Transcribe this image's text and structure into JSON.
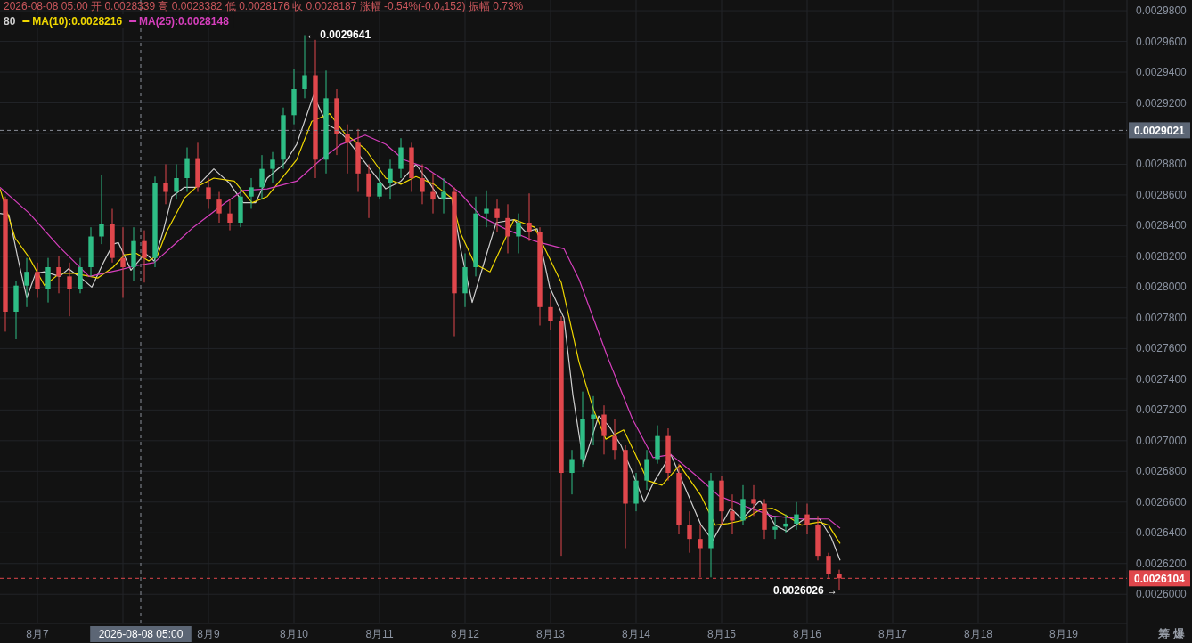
{
  "chart_data": {
    "type": "candlestick",
    "annotations": [
      "2026-08-08 05:00 开 0.0028339 高 0.0028382 低 0.0028176 收 0.0028187 涨幅 -0.54%(-0.0₄152) 振幅 0.73%",
      "80",
      {
        "text": "← 0.0029641",
        "x": "2026-08-10T03:00",
        "y": 0.0029641
      },
      {
        "text": "0.0026026 →",
        "x": "2026-08-16T09:00",
        "y": 0.0026026
      },
      "筹 爆"
    ],
    "x": [
      "2026-08-06T15:00",
      "2026-08-06T18:00",
      "2026-08-06T21:00",
      "2026-08-07T00:00",
      "2026-08-07T03:00",
      "2026-08-07T06:00",
      "2026-08-07T09:00",
      "2026-08-07T12:00",
      "2026-08-07T15:00",
      "2026-08-07T18:00",
      "2026-08-07T21:00",
      "2026-08-08T00:00",
      "2026-08-08T03:00",
      "2026-08-08T06:00",
      "2026-08-08T09:00",
      "2026-08-08T12:00",
      "2026-08-08T15:00",
      "2026-08-08T18:00",
      "2026-08-08T21:00",
      "2026-08-09T00:00",
      "2026-08-09T03:00",
      "2026-08-09T06:00",
      "2026-08-09T09:00",
      "2026-08-09T12:00",
      "2026-08-09T15:00",
      "2026-08-09T18:00",
      "2026-08-09T21:00",
      "2026-08-10T00:00",
      "2026-08-10T03:00",
      "2026-08-10T06:00",
      "2026-08-10T09:00",
      "2026-08-10T12:00",
      "2026-08-10T15:00",
      "2026-08-10T18:00",
      "2026-08-10T21:00",
      "2026-08-11T00:00",
      "2026-08-11T03:00",
      "2026-08-11T06:00",
      "2026-08-11T09:00",
      "2026-08-11T12:00",
      "2026-08-11T15:00",
      "2026-08-11T18:00",
      "2026-08-11T21:00",
      "2026-08-12T00:00",
      "2026-08-12T03:00",
      "2026-08-12T06:00",
      "2026-08-12T09:00",
      "2026-08-12T12:00",
      "2026-08-12T15:00",
      "2026-08-12T18:00",
      "2026-08-12T21:00",
      "2026-08-13T00:00",
      "2026-08-13T03:00",
      "2026-08-13T06:00",
      "2026-08-13T09:00",
      "2026-08-13T12:00",
      "2026-08-13T15:00",
      "2026-08-13T18:00",
      "2026-08-13T21:00",
      "2026-08-14T00:00",
      "2026-08-14T03:00",
      "2026-08-14T06:00",
      "2026-08-14T09:00",
      "2026-08-14T12:00",
      "2026-08-14T15:00",
      "2026-08-14T18:00",
      "2026-08-14T21:00",
      "2026-08-15T00:00",
      "2026-08-15T03:00",
      "2026-08-15T06:00",
      "2026-08-15T09:00",
      "2026-08-15T12:00",
      "2026-08-15T15:00",
      "2026-08-15T18:00",
      "2026-08-15T21:00",
      "2026-08-16T00:00",
      "2026-08-16T03:00",
      "2026-08-16T06:00",
      "2026-08-16T09:00"
    ],
    "ohlc": [
      [
        0.002857,
        0.002859,
        0.002771,
        0.002784
      ],
      [
        0.002784,
        0.002804,
        0.002766,
        0.002801
      ],
      [
        0.002801,
        0.002819,
        0.002787,
        0.00281
      ],
      [
        0.00281,
        0.002816,
        0.002793,
        0.002799
      ],
      [
        0.002799,
        0.002819,
        0.00279,
        0.002813
      ],
      [
        0.002813,
        0.00282,
        0.002796,
        0.002807
      ],
      [
        0.002807,
        0.002816,
        0.002781,
        0.002799
      ],
      [
        0.002799,
        0.002819,
        0.002796,
        0.002813
      ],
      [
        0.002813,
        0.002839,
        0.002807,
        0.002833
      ],
      [
        0.002833,
        0.002873,
        0.002828,
        0.002841
      ],
      [
        0.002841,
        0.002851,
        0.002816,
        0.002819
      ],
      [
        0.002819,
        0.002839,
        0.002793,
        0.002813
      ],
      [
        0.002813,
        0.002839,
        0.002804,
        0.00283
      ],
      [
        0.00283,
        0.002837,
        0.002803,
        0.002819
      ],
      [
        0.002819,
        0.002872,
        0.002813,
        0.002868
      ],
      [
        0.002868,
        0.00288,
        0.002854,
        0.002862
      ],
      [
        0.002862,
        0.00288,
        0.002857,
        0.002871
      ],
      [
        0.002871,
        0.002891,
        0.002862,
        0.002884
      ],
      [
        0.002884,
        0.002894,
        0.002862,
        0.002865
      ],
      [
        0.002865,
        0.002871,
        0.002851,
        0.002857
      ],
      [
        0.002857,
        0.002862,
        0.002842,
        0.002848
      ],
      [
        0.002848,
        0.002857,
        0.002837,
        0.002842
      ],
      [
        0.002842,
        0.002865,
        0.002839,
        0.002859
      ],
      [
        0.002859,
        0.002871,
        0.002851,
        0.002865
      ],
      [
        0.002865,
        0.002886,
        0.002857,
        0.002877
      ],
      [
        0.002877,
        0.002888,
        0.002868,
        0.002883
      ],
      [
        0.002883,
        0.002917,
        0.002877,
        0.002912
      ],
      [
        0.002912,
        0.002942,
        0.002906,
        0.002929
      ],
      [
        0.002929,
        0.0029641,
        0.002923,
        0.002938
      ],
      [
        0.002938,
        0.002961,
        0.002871,
        0.002883
      ],
      [
        0.002883,
        0.002941,
        0.002874,
        0.002923
      ],
      [
        0.002923,
        0.002929,
        0.002886,
        0.0029
      ],
      [
        0.0029,
        0.002906,
        0.002874,
        0.002894
      ],
      [
        0.002894,
        0.002903,
        0.002862,
        0.002874
      ],
      [
        0.002874,
        0.00288,
        0.002845,
        0.002859
      ],
      [
        0.002859,
        0.002877,
        0.002857,
        0.002868
      ],
      [
        0.002868,
        0.002883,
        0.002857,
        0.002877
      ],
      [
        0.002877,
        0.002897,
        0.002871,
        0.002891
      ],
      [
        0.002891,
        0.002894,
        0.002862,
        0.002871
      ],
      [
        0.002871,
        0.00288,
        0.002854,
        0.002862
      ],
      [
        0.002862,
        0.002874,
        0.002848,
        0.002857
      ],
      [
        0.002857,
        0.002871,
        0.002848,
        0.002862
      ],
      [
        0.002862,
        0.002865,
        0.002768,
        0.002796
      ],
      [
        0.002796,
        0.002822,
        0.002787,
        0.002813
      ],
      [
        0.002813,
        0.002859,
        0.002807,
        0.002848
      ],
      [
        0.002848,
        0.002863,
        0.002839,
        0.002851
      ],
      [
        0.002851,
        0.002857,
        0.002836,
        0.002845
      ],
      [
        0.002845,
        0.002854,
        0.002822,
        0.002833
      ],
      [
        0.002833,
        0.002848,
        0.002822,
        0.002842
      ],
      [
        0.002842,
        0.002861,
        0.00283,
        0.002836
      ],
      [
        0.002836,
        0.002839,
        0.002775,
        0.002787
      ],
      [
        0.002787,
        0.002796,
        0.002772,
        0.002778
      ],
      [
        0.002778,
        0.002781,
        0.002625,
        0.002679
      ],
      [
        0.002679,
        0.002694,
        0.002665,
        0.002688
      ],
      [
        0.002688,
        0.002732,
        0.002683,
        0.002714
      ],
      [
        0.002714,
        0.002729,
        0.002697,
        0.002717
      ],
      [
        0.002717,
        0.002723,
        0.002691,
        0.002703
      ],
      [
        0.002703,
        0.002714,
        0.002688,
        0.002694
      ],
      [
        0.002694,
        0.002697,
        0.00263,
        0.002659
      ],
      [
        0.002659,
        0.002679,
        0.002654,
        0.002674
      ],
      [
        0.002674,
        0.002694,
        0.002668,
        0.002688
      ],
      [
        0.002688,
        0.00271,
        0.002685,
        0.002703
      ],
      [
        0.002703,
        0.002708,
        0.002674,
        0.002679
      ],
      [
        0.002679,
        0.002685,
        0.002639,
        0.002645
      ],
      [
        0.002645,
        0.002654,
        0.002627,
        0.002636
      ],
      [
        0.002636,
        0.002645,
        0.002611,
        0.00263
      ],
      [
        0.00263,
        0.002679,
        0.002611,
        0.002674
      ],
      [
        0.002674,
        0.002677,
        0.002645,
        0.002654
      ],
      [
        0.002654,
        0.002665,
        0.002639,
        0.002648
      ],
      [
        0.002648,
        0.002671,
        0.002645,
        0.002662
      ],
      [
        0.002662,
        0.002671,
        0.002651,
        0.002659
      ],
      [
        0.002659,
        0.002662,
        0.002636,
        0.002642
      ],
      [
        0.002642,
        0.002651,
        0.002636,
        0.002644
      ],
      [
        0.002644,
        0.002652,
        0.00264,
        0.002646
      ],
      [
        0.002646,
        0.00266,
        0.002642,
        0.002652
      ],
      [
        0.002652,
        0.002659,
        0.002639,
        0.002645
      ],
      [
        0.002645,
        0.002651,
        0.002622,
        0.002625
      ],
      [
        0.002625,
        0.002627,
        0.00261,
        0.002613
      ],
      [
        0.002613,
        0.002616,
        0.0026026,
        0.0026104
      ]
    ],
    "colors": [
      "#e0474c",
      "#2ebd85",
      "#2ebd85",
      "#e0474c",
      "#2ebd85",
      "#e0474c",
      "#e0474c",
      "#2ebd85",
      "#2ebd85",
      "#2ebd85",
      "#e0474c",
      "#e0474c",
      "#2ebd85",
      "#e0474c",
      "#2ebd85",
      "#e0474c",
      "#2ebd85",
      "#2ebd85",
      "#e0474c",
      "#e0474c",
      "#e0474c",
      "#e0474c",
      "#2ebd85",
      "#2ebd85",
      "#2ebd85",
      "#2ebd85",
      "#2ebd85",
      "#2ebd85",
      "#2ebd85",
      "#e0474c",
      "#2ebd85",
      "#e0474c",
      "#e0474c",
      "#e0474c",
      "#e0474c",
      "#2ebd85",
      "#2ebd85",
      "#2ebd85",
      "#e0474c",
      "#e0474c",
      "#e0474c",
      "#2ebd85",
      "#e0474c",
      "#2ebd85",
      "#2ebd85",
      "#2ebd85",
      "#e0474c",
      "#e0474c",
      "#2ebd85",
      "#e0474c",
      "#e0474c",
      "#e0474c",
      "#e0474c",
      "#2ebd85",
      "#2ebd85",
      "#2ebd85",
      "#e0474c",
      "#e0474c",
      "#e0474c",
      "#2ebd85",
      "#2ebd85",
      "#2ebd85",
      "#e0474c",
      "#e0474c",
      "#e0474c",
      "#e0474c",
      "#2ebd85",
      "#e0474c",
      "#e0474c",
      "#2ebd85",
      "#e0474c",
      "#e0474c",
      "#2ebd85",
      "#2ebd85",
      "#2ebd85",
      "#e0474c",
      "#e0474c",
      "#e0474c",
      "#e0474c"
    ],
    "series": [
      {
        "type": "line",
        "color": "#cfcfcf",
        "x": [
          "2026-08-06T13:30",
          "2026-08-06T16:00",
          "2026-08-06T18:30",
          "2026-08-06T21:00",
          "2026-08-06T23:30",
          "2026-08-07T02:00",
          "2026-08-07T06:15",
          "2026-08-07T08:45",
          "2026-08-07T12:45",
          "2026-08-07T15:15",
          "2026-08-07T18:45",
          "2026-08-07T21:15",
          "2026-08-07T22:45",
          "2026-08-08T02:15",
          "2026-08-08T06:15",
          "2026-08-08T08:45",
          "2026-08-08T11:15",
          "2026-08-08T13:45",
          "2026-08-08T17:15",
          "2026-08-08T20:30",
          "2026-08-09T01:30",
          "2026-08-09T05:45",
          "2026-08-09T09:45",
          "2026-08-09T13:15",
          "2026-08-09T16:30",
          "2026-08-09T21:30",
          "2026-08-10T00:45",
          "2026-08-10T05:30",
          "2026-08-10T09:15",
          "2026-08-10T12:30",
          "2026-08-10T15:00",
          "2026-08-10T20:00",
          "2026-08-11T01:45",
          "2026-08-11T06:00",
          "2026-08-11T10:15",
          "2026-08-11T14:15",
          "2026-08-11T16:45",
          "2026-08-11T20:15",
          "2026-08-11T22:45",
          "2026-08-12T02:00",
          "2026-08-12T06:15",
          "2026-08-12T08:45",
          "2026-08-12T13:45",
          "2026-08-12T17:00",
          "2026-08-12T20:15",
          "2026-08-12T23:45",
          "2026-08-13T03:45",
          "2026-08-13T06:15",
          "2026-08-13T09:15",
          "2026-08-13T13:30",
          "2026-08-13T16:15",
          "2026-08-13T19:45",
          "2026-08-13T23:00",
          "2026-08-14T02:15",
          "2026-08-14T04:45",
          "2026-08-14T09:45",
          "2026-08-14T14:00",
          "2026-08-14T18:15",
          "2026-08-14T21:30",
          "2026-08-15T02:30",
          "2026-08-15T05:45",
          "2026-08-15T10:45",
          "2026-08-15T15:00",
          "2026-08-15T18:15",
          "2026-08-15T23:15",
          "2026-08-16T03:30",
          "2026-08-16T06:45",
          "2026-08-16T09:15"
        ],
        "values": [
          0.002848,
          0.002847,
          0.002819,
          0.002793,
          0.002809,
          0.00281,
          0.002807,
          0.002812,
          0.002805,
          0.0028,
          0.002817,
          0.002828,
          0.002829,
          0.002811,
          0.002822,
          0.002817,
          0.002836,
          0.002859,
          0.002865,
          0.002865,
          0.002877,
          0.002868,
          0.002855,
          0.002855,
          0.002871,
          0.002881,
          0.002893,
          0.002925,
          0.002906,
          0.002902,
          0.002896,
          0.002881,
          0.002864,
          0.002869,
          0.00288,
          0.002867,
          0.002858,
          0.002858,
          0.002825,
          0.00279,
          0.002823,
          0.002842,
          0.002844,
          0.002836,
          0.002838,
          0.0028,
          0.00278,
          0.00273,
          0.002685,
          0.002716,
          0.00271,
          0.002697,
          0.002679,
          0.00266,
          0.002672,
          0.002691,
          0.002668,
          0.002645,
          0.002635,
          0.002656,
          0.002649,
          0.002661,
          0.002645,
          0.002641,
          0.002649,
          0.002649,
          0.002637,
          0.002622
        ]
      },
      {
        "name": "MA(10):0.0028216",
        "type": "line",
        "color": "#f0d800",
        "x": [
          "2026-08-06T13:30",
          "2026-08-06T17:45",
          "2026-08-06T21:45",
          "2026-08-07T02:00",
          "2026-08-07T06:15",
          "2026-08-07T10:15",
          "2026-08-07T17:00",
          "2026-08-07T21:15",
          "2026-08-08T00:30",
          "2026-08-08T03:45",
          "2026-08-08T07:15",
          "2026-08-08T09:45",
          "2026-08-08T12:15",
          "2026-08-08T17:15",
          "2026-08-08T20:30",
          "2026-08-09T01:30",
          "2026-08-09T07:15",
          "2026-08-09T12:15",
          "2026-08-09T16:30",
          "2026-08-10T00:45",
          "2026-08-10T05:00",
          "2026-08-10T10:00",
          "2026-08-10T14:15",
          "2026-08-10T20:00",
          "2026-08-11T01:45",
          "2026-08-11T06:00",
          "2026-08-11T10:15",
          "2026-08-11T15:15",
          "2026-08-11T20:15",
          "2026-08-11T22:45",
          "2026-08-12T02:45",
          "2026-08-12T07:00",
          "2026-08-12T13:45",
          "2026-08-12T19:30",
          "2026-08-13T03:00",
          "2026-08-13T08:00",
          "2026-08-13T12:15",
          "2026-08-13T15:30",
          "2026-08-13T20:30",
          "2026-08-13T23:00",
          "2026-08-14T03:15",
          "2026-08-14T07:15",
          "2026-08-14T12:15",
          "2026-08-14T18:15",
          "2026-08-14T22:15",
          "2026-08-15T01:45",
          "2026-08-15T05:45",
          "2026-08-15T10:45",
          "2026-08-15T14:15",
          "2026-08-15T18:15",
          "2026-08-15T22:30",
          "2026-08-16T03:30",
          "2026-08-16T06:00",
          "2026-08-16T09:15"
        ],
        "values": [
          0.002864,
          0.002832,
          0.002819,
          0.002801,
          0.002809,
          0.002809,
          0.002806,
          0.002813,
          0.002821,
          0.002822,
          0.002817,
          0.002821,
          0.002836,
          0.002858,
          0.002865,
          0.002871,
          0.002869,
          0.002855,
          0.002859,
          0.002883,
          0.002908,
          0.002913,
          0.0029,
          0.00289,
          0.002871,
          0.002867,
          0.002872,
          0.002867,
          0.002858,
          0.002835,
          0.002815,
          0.00281,
          0.002844,
          0.002839,
          0.002803,
          0.002751,
          0.002719,
          0.002701,
          0.002707,
          0.002695,
          0.002674,
          0.002671,
          0.002684,
          0.002664,
          0.002645,
          0.002646,
          0.002648,
          0.002655,
          0.002656,
          0.002651,
          0.002645,
          0.002647,
          0.002645,
          0.002633
        ]
      },
      {
        "name": "MA(25):0.0028148",
        "type": "line",
        "color": "#d63fbd",
        "x": [
          "2026-08-06T13:30",
          "2026-08-06T21:45",
          "2026-08-07T06:15",
          "2026-08-07T14:30",
          "2026-08-07T22:45",
          "2026-08-08T03:45",
          "2026-08-08T08:45",
          "2026-08-08T15:30",
          "2026-08-08T19:45",
          "2026-08-08T23:45",
          "2026-08-09T04:45",
          "2026-08-09T09:45",
          "2026-08-09T16:30",
          "2026-08-10T00:45",
          "2026-08-10T07:30",
          "2026-08-10T13:15",
          "2026-08-10T20:00",
          "2026-08-11T01:45",
          "2026-08-11T06:45",
          "2026-08-11T12:45",
          "2026-08-11T18:30",
          "2026-08-11T22:45",
          "2026-08-12T04:30",
          "2026-08-12T11:15",
          "2026-08-12T19:30",
          "2026-08-13T03:45",
          "2026-08-13T08:00",
          "2026-08-13T16:15",
          "2026-08-13T23:00",
          "2026-08-14T04:45",
          "2026-08-14T09:45",
          "2026-08-14T16:30",
          "2026-08-14T23:15",
          "2026-08-15T05:45",
          "2026-08-15T14:15",
          "2026-08-15T22:30",
          "2026-08-16T06:00",
          "2026-08-16T09:15"
        ],
        "values": [
          0.002865,
          0.002848,
          0.002826,
          0.002807,
          0.002811,
          0.002814,
          0.002816,
          0.00283,
          0.002839,
          0.002846,
          0.002855,
          0.002863,
          0.002864,
          0.002869,
          0.002883,
          0.002893,
          0.002899,
          0.002893,
          0.002883,
          0.002878,
          0.002869,
          0.002861,
          0.002846,
          0.002838,
          0.00283,
          0.002825,
          0.002805,
          0.002753,
          0.002714,
          0.002689,
          0.002691,
          0.002678,
          0.002664,
          0.002658,
          0.002651,
          0.002649,
          0.002649,
          0.002643
        ]
      }
    ],
    "xlim": [
      "2026-08-06T13:30",
      "2026-08-19T17:45"
    ],
    "xticks": [
      {
        "value": "2026-08-07",
        "label": "8月7"
      },
      {
        "value": "2026-08-08",
        "label": null
      },
      {
        "value": "2026-08-09",
        "label": "8月9"
      },
      {
        "value": "2026-08-10",
        "label": "8月10"
      },
      {
        "value": "2026-08-11",
        "label": "8月11"
      },
      {
        "value": "2026-08-12",
        "label": "8月12"
      },
      {
        "value": "2026-08-13",
        "label": "8月13"
      },
      {
        "value": "2026-08-14",
        "label": "8月14"
      },
      {
        "value": "2026-08-15",
        "label": "8月15"
      },
      {
        "value": "2026-08-16",
        "label": "8月16"
      },
      {
        "value": "2026-08-17",
        "label": "8月17"
      },
      {
        "value": "2026-08-18",
        "label": "8月18"
      },
      {
        "value": "2026-08-19",
        "label": "8月19"
      }
    ],
    "ylim": [
      0.002581,
      0.002987
    ],
    "yticks": [
      {
        "value": 0.0026,
        "label": "0.0026000"
      },
      {
        "value": 0.00262,
        "label": "0.0026200"
      },
      {
        "value": 0.00264,
        "label": "0.0026400"
      },
      {
        "value": 0.00266,
        "label": "0.0026600"
      },
      {
        "value": 0.00268,
        "label": "0.0026800"
      },
      {
        "value": 0.0027,
        "label": "0.0027000"
      },
      {
        "value": 0.00272,
        "label": "0.0027200"
      },
      {
        "value": 0.00274,
        "label": "0.0027400"
      },
      {
        "value": 0.00276,
        "label": "0.0027600"
      },
      {
        "value": 0.00278,
        "label": "0.0027800"
      },
      {
        "value": 0.0028,
        "label": "0.0028000"
      },
      {
        "value": 0.00282,
        "label": "0.0028200"
      },
      {
        "value": 0.00284,
        "label": "0.0028400"
      },
      {
        "value": 0.00286,
        "label": "0.0028600"
      },
      {
        "value": 0.00288,
        "label": "0.0028800"
      },
      {
        "value": 0.0029,
        "label": null
      },
      {
        "value": 0.00292,
        "label": "0.0029200"
      },
      {
        "value": 0.00294,
        "label": "0.0029400"
      },
      {
        "value": 0.00296,
        "label": "0.0029600"
      },
      {
        "value": 0.00298,
        "label": "0.0029800"
      }
    ],
    "ref_lines": [
      {
        "axis": "y",
        "value": 0.0029021,
        "label": "0.0029021",
        "color": "#8a8f99",
        "line_style": "dashed"
      },
      {
        "axis": "y",
        "value": 0.0026104,
        "label": "0.0026104",
        "color": "#e0474c",
        "line_style": "dashed"
      },
      {
        "axis": "x",
        "value": "2026-08-08T05:00",
        "label": "2026-08-08 05:00",
        "color": "#8a8f99",
        "line_style": "dashed"
      }
    ],
    "grid": true,
    "legend": "top left"
  }
}
